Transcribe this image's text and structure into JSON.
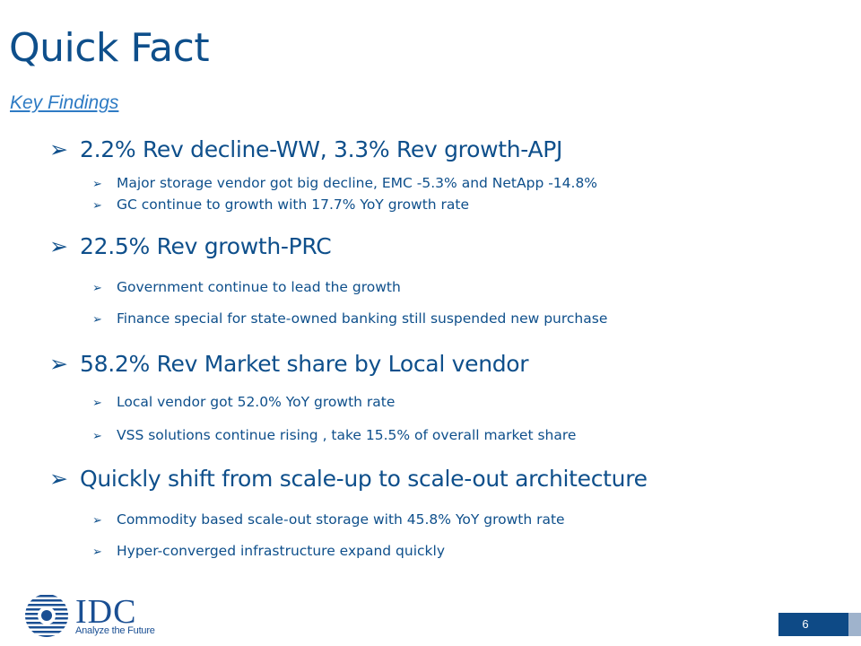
{
  "slide": {
    "title": "Quick Fact",
    "subtitle": "Key Findings",
    "page_number": "6"
  },
  "bullets": [
    {
      "text": "2.2% Rev decline-WW, 3.3% Rev growth-APJ",
      "sub": [
        "Major storage vendor got big decline, EMC -5.3% and NetApp -14.8%",
        "GC continue to growth with 17.7% YoY growth rate"
      ]
    },
    {
      "text": "22.5% Rev growth-PRC",
      "sub": [
        "Government continue to lead the growth",
        "Finance special for state-owned banking still suspended new purchase"
      ]
    },
    {
      "text": "58.2% Rev Market share by Local vendor",
      "sub": [
        "Local vendor got 52.0% YoY growth rate",
        "VSS solutions continue rising , take 15.5% of overall market share"
      ]
    },
    {
      "text": "Quickly shift from scale-up to scale-out architecture",
      "sub": [
        "Commodity based scale-out storage with 45.8% YoY growth rate",
        "Hyper-converged infrastructure expand quickly"
      ]
    }
  ],
  "bullet_glyph": "➢",
  "logo": {
    "name": "IDC",
    "tagline": "Analyze the Future",
    "color": "#1a4f93"
  },
  "colors": {
    "title": "#0e4f8b",
    "subtitle": "#2e7bc4",
    "body": "#0e4f8b",
    "page_box": "#0e4a86"
  }
}
